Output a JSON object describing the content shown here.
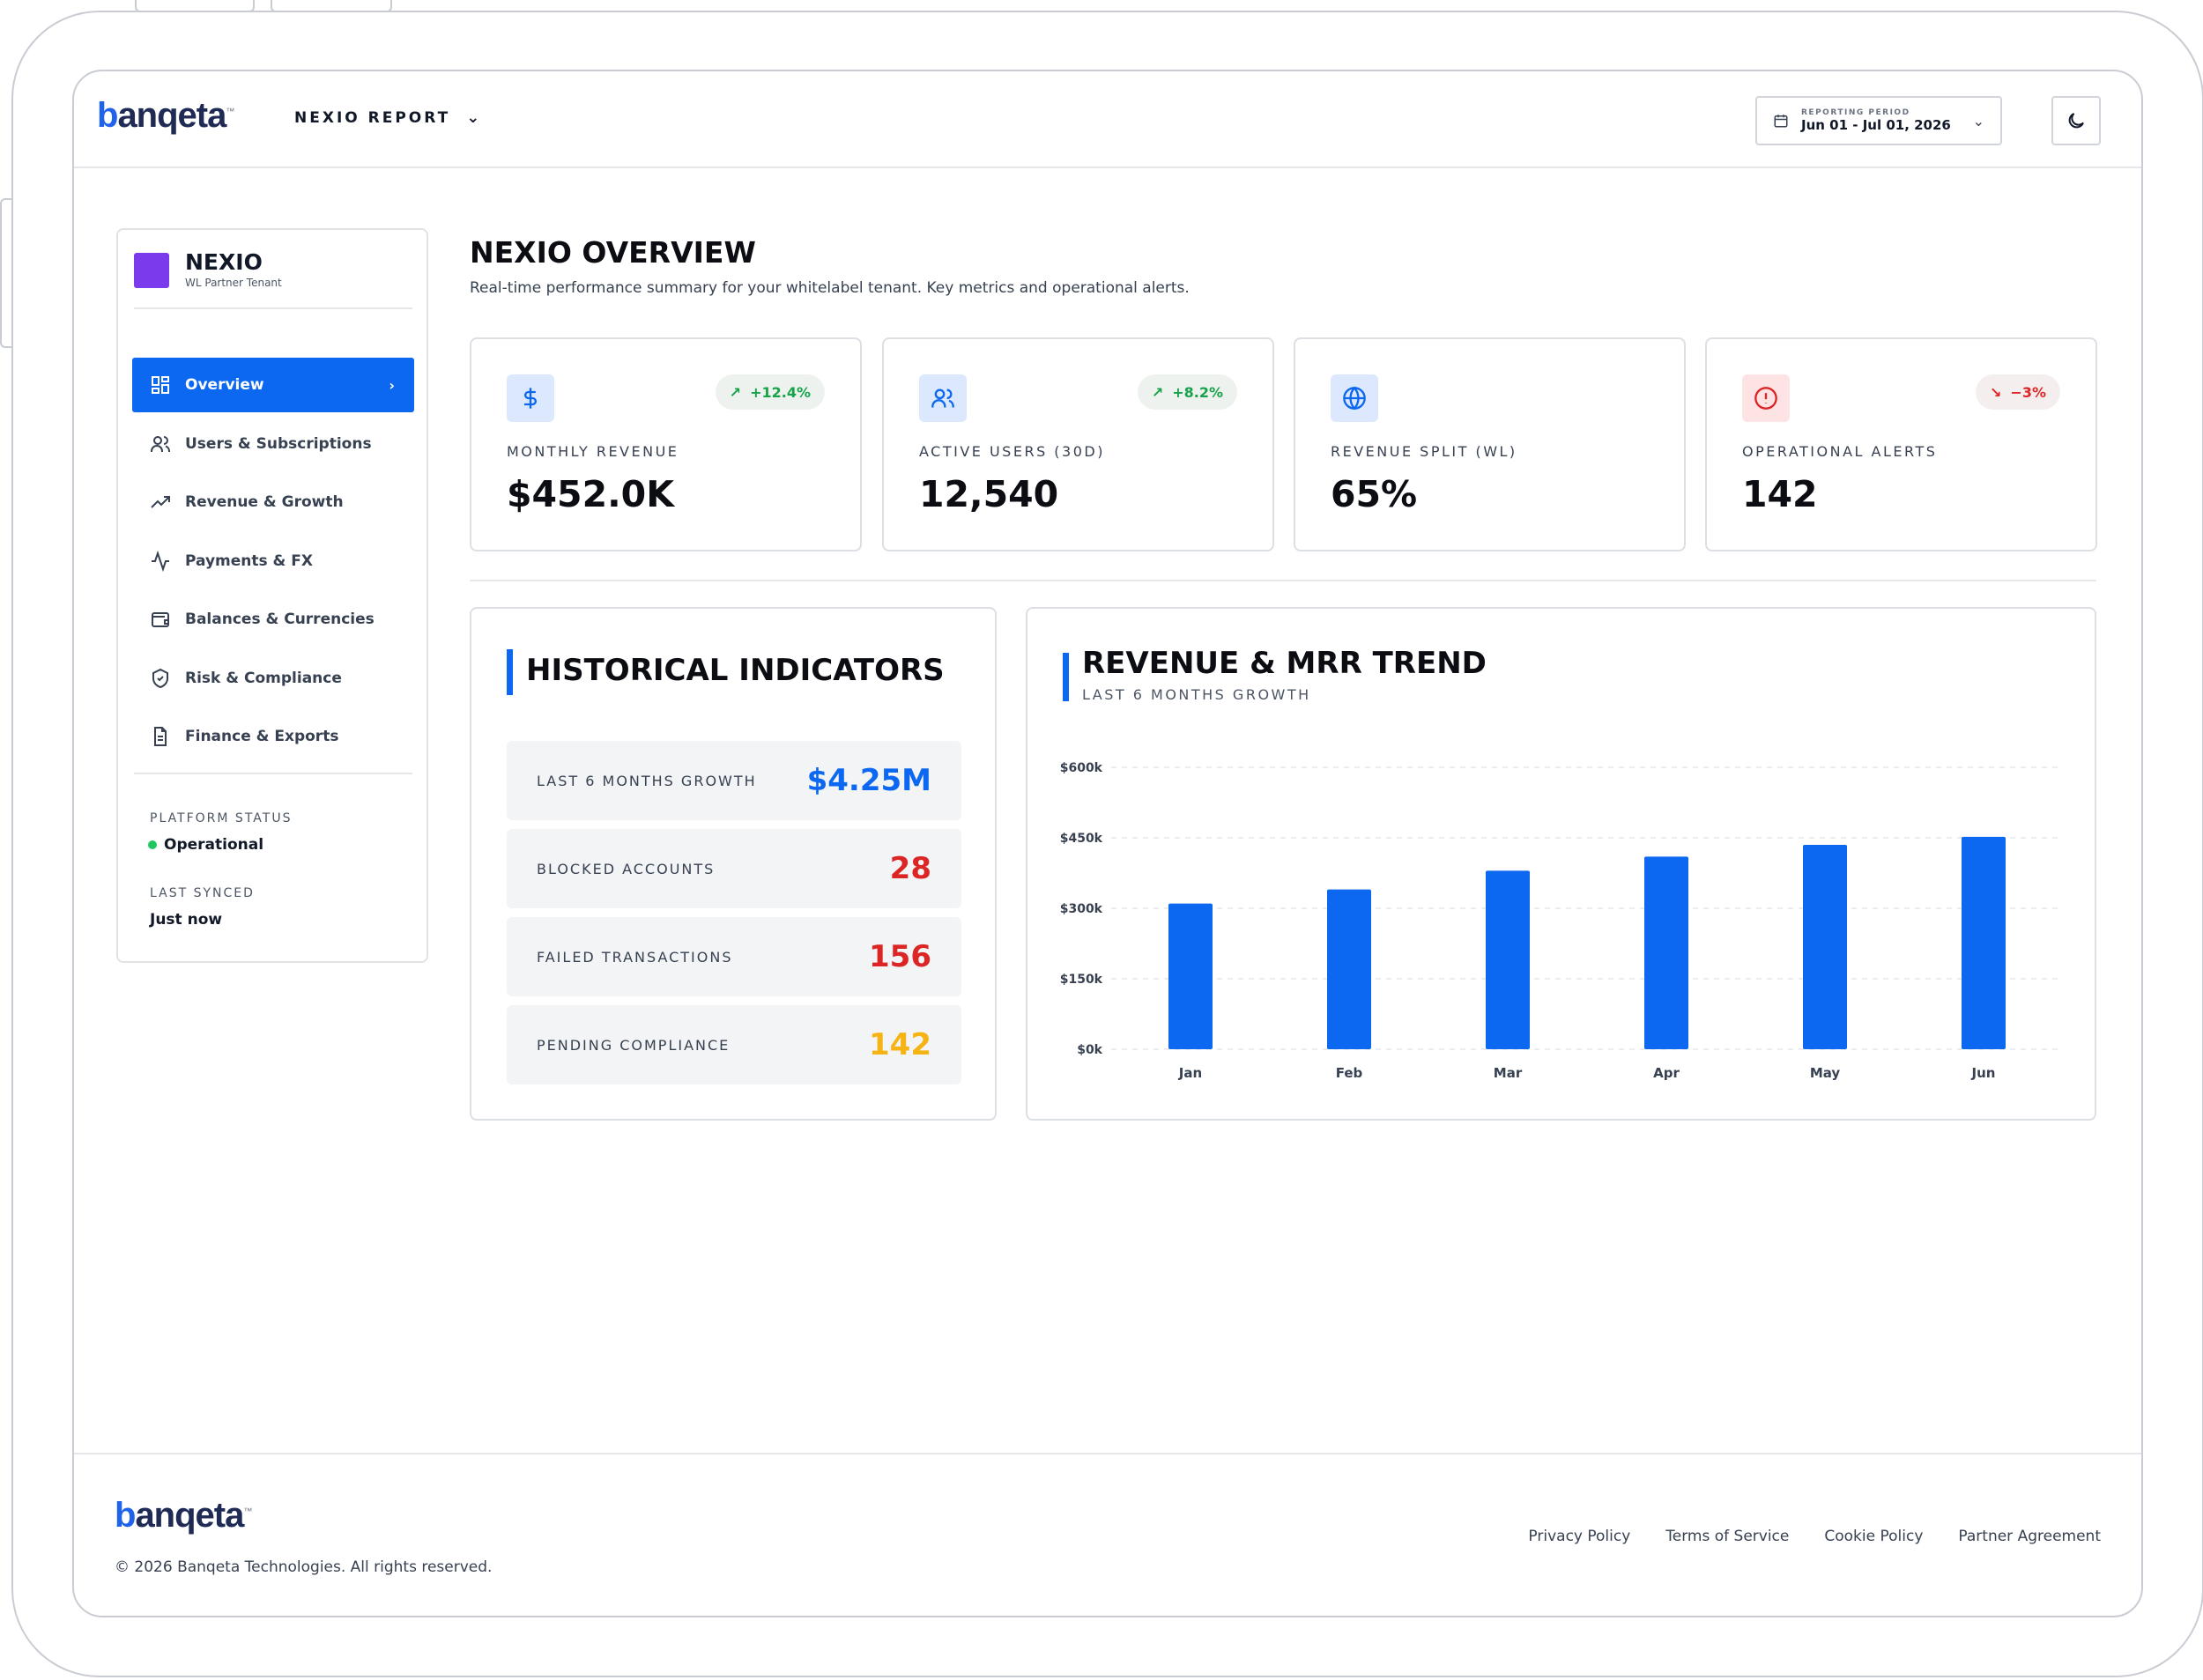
{
  "brand": {
    "name": "banqeta",
    "tm": "™"
  },
  "header": {
    "report_label": "NEXIO REPORT",
    "period_label": "REPORTING PERIOD",
    "period_value": "Jun 01 - Jul 01, 2026"
  },
  "sidebar": {
    "tenant_name": "NEXIO",
    "tenant_sub": "WL Partner Tenant",
    "items": [
      {
        "label": "Overview",
        "icon": "grid-icon",
        "active": true
      },
      {
        "label": "Users & Subscriptions",
        "icon": "users-icon"
      },
      {
        "label": "Revenue & Growth",
        "icon": "trend-up-icon"
      },
      {
        "label": "Payments & FX",
        "icon": "activity-icon"
      },
      {
        "label": "Balances & Currencies",
        "icon": "wallet-icon"
      },
      {
        "label": "Risk & Compliance",
        "icon": "shield-check-icon"
      },
      {
        "label": "Finance & Exports",
        "icon": "file-text-icon"
      }
    ],
    "platform_status_label": "PLATFORM STATUS",
    "platform_status_value": "Operational",
    "last_synced_label": "LAST SYNCED",
    "last_synced_value": "Just now"
  },
  "main": {
    "title": "NEXIO OVERVIEW",
    "subtitle": "Real-time performance summary for your whitelabel tenant. Key metrics and operational alerts.",
    "kpis": [
      {
        "label": "MONTHLY REVENUE",
        "value": "$452.0K",
        "change": "+12.4%",
        "trend": "up",
        "icon": "dollar-icon"
      },
      {
        "label": "ACTIVE USERS (30D)",
        "value": "12,540",
        "change": "+8.2%",
        "trend": "up",
        "icon": "users-icon"
      },
      {
        "label": "REVENUE SPLIT (WL)",
        "value": "65%",
        "change": "",
        "trend": "none",
        "icon": "globe-icon"
      },
      {
        "label": "OPERATIONAL ALERTS",
        "value": "142",
        "change": "−3%",
        "trend": "down",
        "icon": "alert-circle-icon"
      }
    ],
    "historical": {
      "title": "HISTORICAL INDICATORS",
      "rows": [
        {
          "label": "LAST 6 MONTHS GROWTH",
          "value": "$4.25M",
          "color": "#0c68f0"
        },
        {
          "label": "BLOCKED ACCOUNTS",
          "value": "28",
          "color": "#dc2626"
        },
        {
          "label": "FAILED TRANSACTIONS",
          "value": "156",
          "color": "#dc2626"
        },
        {
          "label": "PENDING COMPLIANCE",
          "value": "142",
          "color": "#f5b414"
        }
      ]
    },
    "trend": {
      "title": "REVENUE & MRR TREND",
      "subtitle": "LAST 6 MONTHS GROWTH"
    }
  },
  "chart_data": {
    "type": "bar",
    "title": "REVENUE & MRR TREND",
    "subtitle": "LAST 6 MONTHS GROWTH",
    "categories": [
      "Jan",
      "Feb",
      "Mar",
      "Apr",
      "May",
      "Jun"
    ],
    "values": [
      310000,
      340000,
      380000,
      410000,
      435000,
      452000
    ],
    "y_ticks": [
      0,
      150000,
      300000,
      450000,
      600000
    ],
    "y_tick_labels": [
      "$0k",
      "$150k",
      "$300k",
      "$450k",
      "$600k"
    ],
    "ylim": [
      0,
      600000
    ],
    "grid": true,
    "bar_color": "#0c68f0"
  },
  "footer": {
    "copyright": "© 2026 Banqeta Technologies. All rights reserved.",
    "links": [
      "Privacy Policy",
      "Terms of Service",
      "Cookie Policy",
      "Partner Agreement"
    ]
  },
  "colors": {
    "accent": "#0c68f0",
    "positive": "#16a34a",
    "negative": "#dc2626",
    "warning": "#f5b414",
    "tenant": "#7c3aed"
  }
}
